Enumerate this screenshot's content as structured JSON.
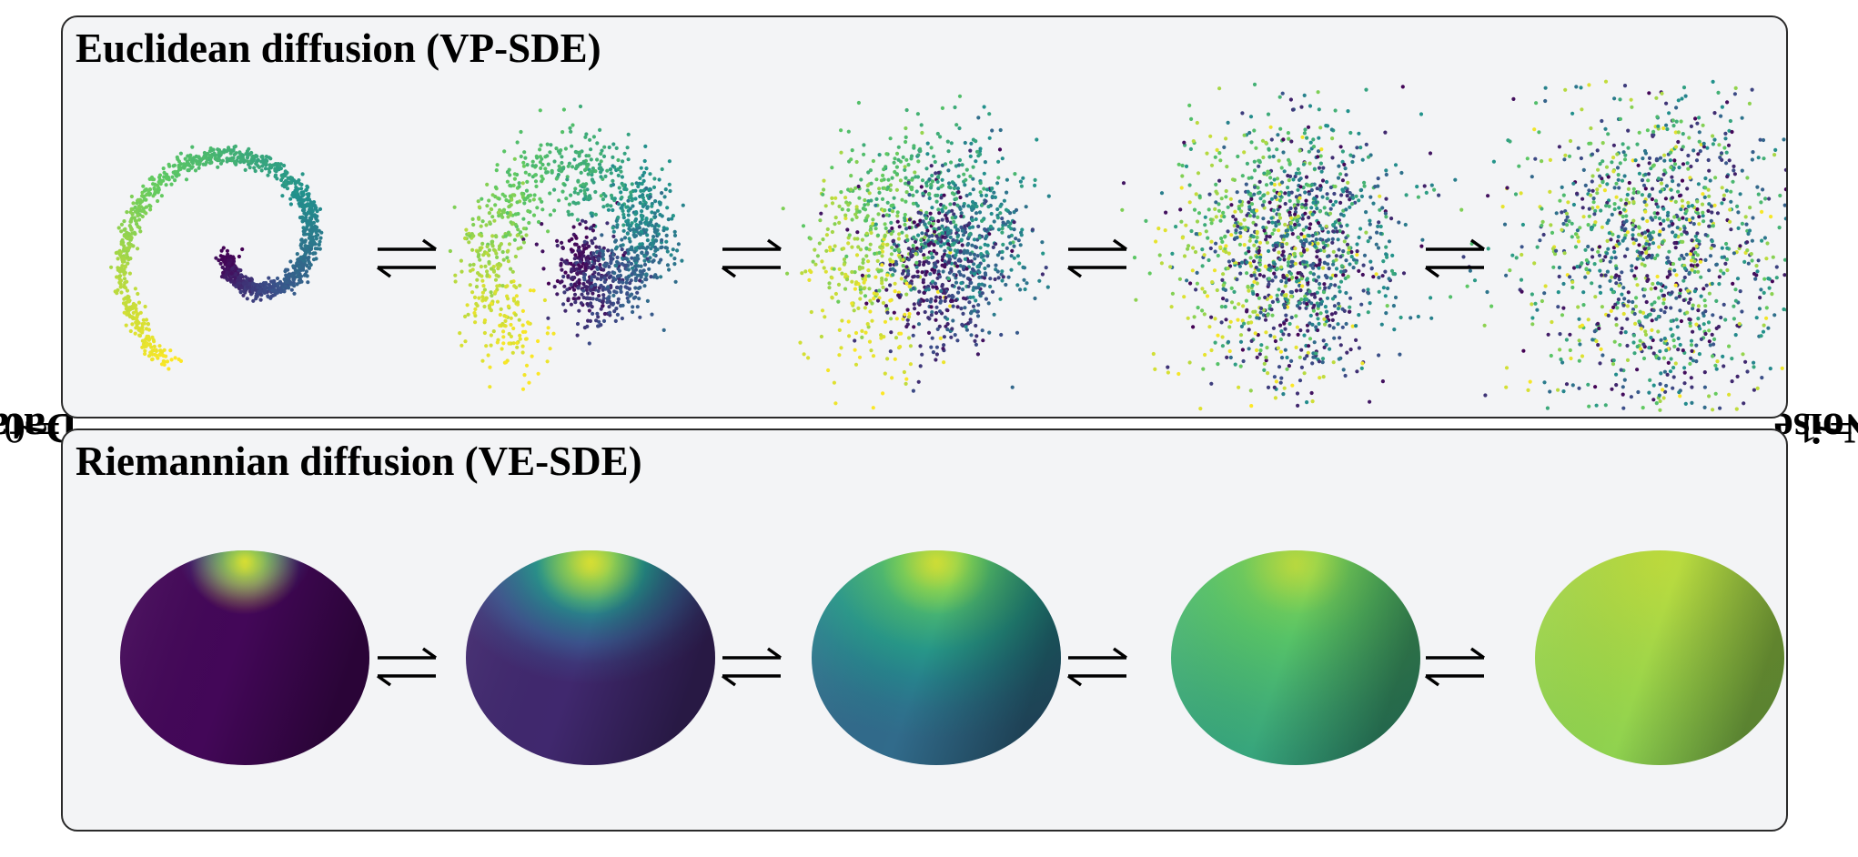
{
  "figure": {
    "left_label": {
      "text": "Data",
      "var": "t",
      "eq": "= 0"
    },
    "right_label": {
      "text": "Noise",
      "var": "t",
      "eq": "= 1"
    }
  },
  "panels": [
    {
      "title": "Euclidean diffusion (VP-SDE)",
      "kind": "point-clouds",
      "stages": 5,
      "colormap": "viridis",
      "stage_descriptions": [
        "clean spiral",
        "blurred spiral",
        "noisy spiral",
        "mostly Gaussian",
        "isotropic Gaussian"
      ]
    },
    {
      "title": "Riemannian diffusion (VE-SDE)",
      "kind": "spheres",
      "stages": 5,
      "colormap": "viridis",
      "stage_descriptions": [
        "peaked density at pole",
        "spreading",
        "spreading further",
        "nearly uniform",
        "uniform density"
      ]
    }
  ],
  "arrow_glyph": "bidirectional-harpoon",
  "colors": {
    "panel_bg": "#f3f4f6",
    "panel_border": "#2a2a2a",
    "viridis": [
      "#440154",
      "#3b528b",
      "#21918c",
      "#5ec962",
      "#fde725"
    ]
  }
}
